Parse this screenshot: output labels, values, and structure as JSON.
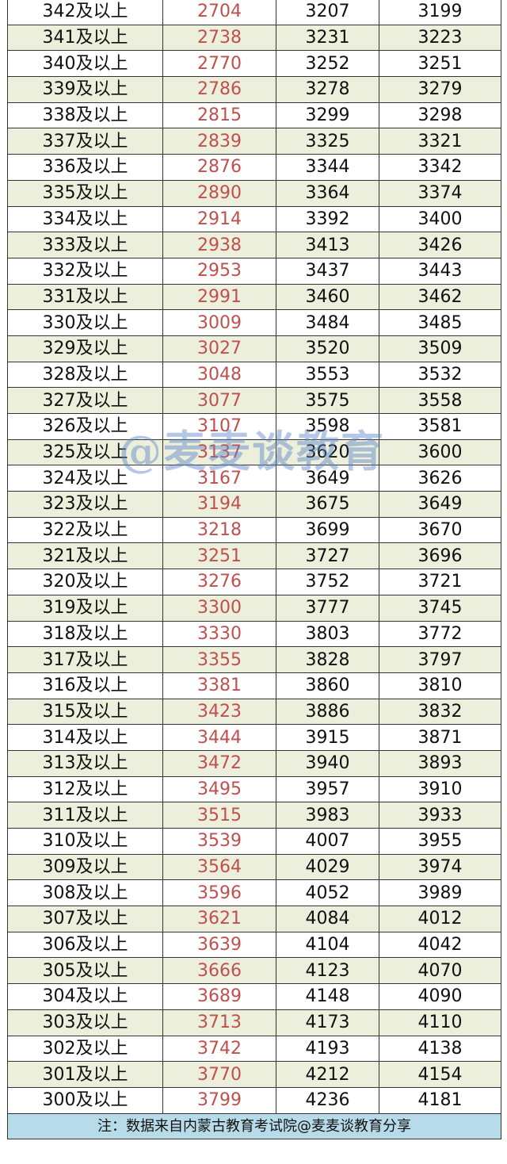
{
  "rows": [
    [
      "342及以上",
      "2704",
      "3207",
      "3199"
    ],
    [
      "341及以上",
      "2738",
      "3231",
      "3223"
    ],
    [
      "340及以上",
      "2770",
      "3252",
      "3251"
    ],
    [
      "339及以上",
      "2786",
      "3278",
      "3279"
    ],
    [
      "338及以上",
      "2815",
      "3299",
      "3298"
    ],
    [
      "337及以上",
      "2839",
      "3325",
      "3321"
    ],
    [
      "336及以上",
      "2876",
      "3344",
      "3342"
    ],
    [
      "335及以上",
      "2890",
      "3364",
      "3374"
    ],
    [
      "334及以上",
      "2914",
      "3392",
      "3400"
    ],
    [
      "333及以上",
      "2938",
      "3413",
      "3426"
    ],
    [
      "332及以上",
      "2953",
      "3437",
      "3443"
    ],
    [
      "331及以上",
      "2991",
      "3460",
      "3462"
    ],
    [
      "330及以上",
      "3009",
      "3484",
      "3485"
    ],
    [
      "329及以上",
      "3027",
      "3520",
      "3509"
    ],
    [
      "328及以上",
      "3048",
      "3553",
      "3532"
    ],
    [
      "327及以上",
      "3077",
      "3575",
      "3558"
    ],
    [
      "326及以上",
      "3107",
      "3598",
      "3581"
    ],
    [
      "325及以上",
      "3137",
      "3620",
      "3600"
    ],
    [
      "324及以上",
      "3167",
      "3649",
      "3626"
    ],
    [
      "323及以上",
      "3194",
      "3675",
      "3649"
    ],
    [
      "322及以上",
      "3218",
      "3699",
      "3670"
    ],
    [
      "321及以上",
      "3251",
      "3727",
      "3696"
    ],
    [
      "320及以上",
      "3276",
      "3752",
      "3721"
    ],
    [
      "319及以上",
      "3300",
      "3777",
      "3745"
    ],
    [
      "318及以上",
      "3330",
      "3803",
      "3772"
    ],
    [
      "317及以上",
      "3355",
      "3828",
      "3797"
    ],
    [
      "316及以上",
      "3381",
      "3860",
      "3810"
    ],
    [
      "315及以上",
      "3423",
      "3886",
      "3832"
    ],
    [
      "314及以上",
      "3444",
      "3915",
      "3871"
    ],
    [
      "313及以上",
      "3472",
      "3940",
      "3893"
    ],
    [
      "312及以上",
      "3495",
      "3957",
      "3910"
    ],
    [
      "311及以上",
      "3515",
      "3983",
      "3933"
    ],
    [
      "310及以上",
      "3539",
      "4007",
      "3955"
    ],
    [
      "309及以上",
      "3564",
      "4029",
      "3974"
    ],
    [
      "308及以上",
      "3596",
      "4052",
      "3989"
    ],
    [
      "307及以上",
      "3621",
      "4084",
      "4012"
    ],
    [
      "306及以上",
      "3639",
      "4104",
      "4042"
    ],
    [
      "305及以上",
      "3666",
      "4123",
      "4070"
    ],
    [
      "304及以上",
      "3689",
      "4148",
      "4090"
    ],
    [
      "303及以上",
      "3713",
      "4173",
      "4110"
    ],
    [
      "302及以上",
      "3742",
      "4193",
      "4138"
    ],
    [
      "301及以上",
      "3770",
      "4212",
      "4154"
    ],
    [
      "300及以上",
      "3799",
      "4236",
      "4181"
    ]
  ],
  "note": "注：数据来自内蒙古教育考试院@麦麦谈教育分享",
  "watermark": "@麦麦谈教育",
  "colors": {
    "highlight_column": "#c0504d",
    "alt_row": "#ebefdc",
    "note_bg": "#b7dbe8"
  }
}
